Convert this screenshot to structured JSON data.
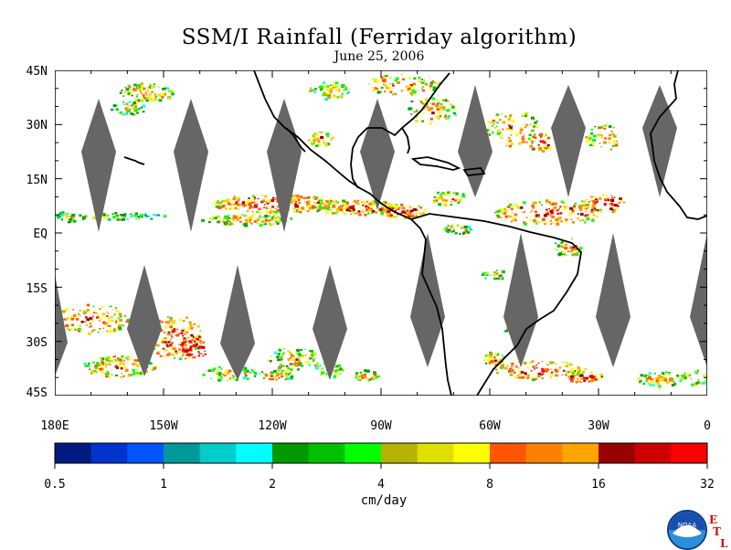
{
  "title": "SSM/I Rainfall (Ferriday algorithm)",
  "date": "June 25, 2006",
  "map": {
    "lat_labels": [
      "45N",
      "30N",
      "15N",
      "EQ",
      "15S",
      "30S",
      "45S"
    ],
    "lon_labels": [
      "180E",
      "150W",
      "120W",
      "90W",
      "60W",
      "30W",
      "0"
    ],
    "lat_range": [
      -45,
      45
    ],
    "lon_range": [
      -180,
      0
    ],
    "no_data_swath_color": "#666666"
  },
  "colorbar": {
    "units": "cm/day",
    "labels": [
      "0.5",
      "1",
      "2",
      "4",
      "8",
      "16",
      "32"
    ],
    "colors": [
      "#001a80",
      "#0033cc",
      "#0055ff",
      "#009999",
      "#00cccc",
      "#00ffff",
      "#009900",
      "#00c000",
      "#00ff00",
      "#b3b300",
      "#e0e000",
      "#ffff00",
      "#ff5500",
      "#ff8000",
      "#ffa500",
      "#990000",
      "#cc0000",
      "#ff0000"
    ]
  },
  "logo": {
    "noaa_text": "NOAA",
    "etl_letters": [
      "E",
      "T",
      "L"
    ]
  }
}
